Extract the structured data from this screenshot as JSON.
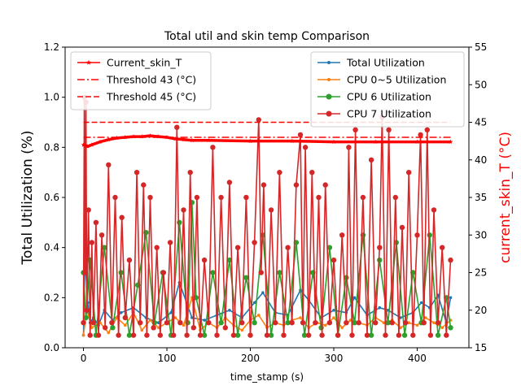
{
  "chart_data": {
    "type": "line",
    "title": "Total util and skin temp Comparison",
    "xlabel": "time_stamp (s)",
    "ylabel_left": "Total Utilization (%)",
    "ylabel_right": "current_skin_T (°C)",
    "xlim": [
      -22,
      462
    ],
    "ylim_left": [
      0,
      1.2
    ],
    "ylim_right": [
      15,
      55
    ],
    "x_ticks": [
      0,
      100,
      200,
      300,
      400
    ],
    "x_tick_labels": [
      "0",
      "100",
      "200",
      "300",
      "400"
    ],
    "y_ticks_left": [
      0,
      0.2,
      0.4,
      0.6,
      0.8,
      1.0,
      1.2
    ],
    "y_tick_labels_left": [
      "0.0",
      "0.2",
      "0.4",
      "0.6",
      "0.8",
      "1.0",
      "1.2"
    ],
    "y_ticks_right": [
      15,
      20,
      25,
      30,
      35,
      40,
      45,
      50,
      55
    ],
    "y_tick_labels_right": [
      "15",
      "20",
      "25",
      "30",
      "35",
      "40",
      "45",
      "50",
      "55"
    ],
    "grid": false,
    "legend_left": {
      "placement": "upper-left",
      "entries": [
        {
          "label": "Current_skin_T",
          "color": "#ff0000",
          "style": "solid-star"
        },
        {
          "label": "Threshold 43 (°C)",
          "color": "#ff0000",
          "style": "dashdot"
        },
        {
          "label": "Threshold 45 (°C)",
          "color": "#ff0000",
          "style": "dashed"
        }
      ]
    },
    "legend_right": {
      "placement": "upper-right",
      "entries": [
        {
          "label": "Total Utilization",
          "color": "#1f77b4",
          "style": "dot"
        },
        {
          "label": "CPU 0~5 Utilization",
          "color": "#ff7f0e",
          "style": "dot"
        },
        {
          "label": "CPU 6 Utilization",
          "color": "#2ca02c",
          "style": "circle"
        },
        {
          "label": "CPU 7 Utilization",
          "color": "#d62728",
          "style": "circle"
        }
      ]
    },
    "thresholds": [
      {
        "value": 43,
        "axis": "right",
        "color": "#ff0000",
        "style": "dashdot",
        "x_range": [
          0,
          440
        ]
      },
      {
        "value": 45,
        "axis": "right",
        "color": "#ff0000",
        "style": "dashed",
        "x_range": [
          0,
          440
        ]
      }
    ],
    "skin_temp": {
      "name": "Current_skin_T",
      "color": "#ff0000",
      "axis": "right",
      "x": [
        0,
        5,
        10,
        20,
        30,
        40,
        50,
        60,
        70,
        80,
        90,
        100,
        110,
        120,
        130,
        150,
        200,
        250,
        300,
        350,
        400,
        440
      ],
      "values": [
        42.0,
        41.8,
        42.0,
        42.4,
        42.7,
        42.9,
        43.0,
        43.1,
        43.1,
        43.2,
        43.1,
        43.0,
        42.8,
        42.7,
        42.6,
        42.6,
        42.5,
        42.5,
        42.4,
        42.4,
        42.4,
        42.4
      ]
    },
    "series": [
      {
        "name": "Total Utilization",
        "color": "#1f77b4",
        "marker": "dot",
        "x": [
          0,
          2,
          3,
          5,
          8,
          12,
          18,
          25,
          35,
          45,
          60,
          75,
          90,
          105,
          115,
          130,
          145,
          160,
          175,
          190,
          205,
          215,
          230,
          245,
          260,
          270,
          285,
          300,
          315,
          325,
          340,
          355,
          365,
          380,
          395,
          405,
          415,
          425,
          435,
          440
        ],
        "values": [
          0.05,
          0.38,
          0.3,
          0.18,
          0.1,
          0.12,
          0.09,
          0.15,
          0.11,
          0.14,
          0.16,
          0.12,
          0.1,
          0.14,
          0.26,
          0.12,
          0.11,
          0.13,
          0.15,
          0.12,
          0.18,
          0.22,
          0.14,
          0.13,
          0.23,
          0.19,
          0.12,
          0.15,
          0.14,
          0.2,
          0.13,
          0.16,
          0.15,
          0.12,
          0.14,
          0.18,
          0.16,
          0.21,
          0.1,
          0.2
        ]
      },
      {
        "name": "CPU 0~5 Utilization",
        "color": "#ff7f0e",
        "marker": "dot",
        "x": [
          0,
          4,
          10,
          20,
          30,
          40,
          50,
          60,
          70,
          80,
          90,
          100,
          110,
          120,
          130,
          140,
          150,
          160,
          170,
          180,
          190,
          200,
          210,
          220,
          230,
          240,
          250,
          260,
          270,
          280,
          290,
          300,
          310,
          320,
          330,
          340,
          350,
          360,
          370,
          380,
          390,
          400,
          410,
          420,
          430,
          440
        ],
        "values": [
          0.05,
          0.15,
          0.08,
          0.1,
          0.06,
          0.12,
          0.09,
          0.14,
          0.07,
          0.11,
          0.08,
          0.1,
          0.12,
          0.09,
          0.2,
          0.07,
          0.1,
          0.08,
          0.12,
          0.09,
          0.07,
          0.11,
          0.13,
          0.08,
          0.1,
          0.09,
          0.11,
          0.12,
          0.08,
          0.1,
          0.09,
          0.12,
          0.08,
          0.11,
          0.1,
          0.09,
          0.12,
          0.1,
          0.11,
          0.08,
          0.1,
          0.09,
          0.12,
          0.1,
          0.08,
          0.11
        ]
      },
      {
        "name": "CPU 6 Utilization",
        "color": "#2ca02c",
        "marker": "circle",
        "x": [
          0,
          3,
          8,
          15,
          25,
          35,
          45,
          55,
          65,
          75,
          85,
          95,
          105,
          115,
          125,
          130,
          135,
          145,
          155,
          165,
          175,
          185,
          195,
          205,
          215,
          225,
          235,
          245,
          255,
          265,
          275,
          285,
          295,
          305,
          315,
          325,
          335,
          345,
          355,
          365,
          375,
          385,
          395,
          405,
          415,
          425,
          435,
          440
        ],
        "values": [
          0.3,
          0.12,
          0.35,
          0.05,
          0.4,
          0.08,
          0.3,
          0.05,
          0.25,
          0.46,
          0.1,
          0.3,
          0.05,
          0.5,
          0.1,
          0.58,
          0.2,
          0.05,
          0.3,
          0.1,
          0.35,
          0.05,
          0.28,
          0.1,
          0.45,
          0.05,
          0.3,
          0.1,
          0.42,
          0.05,
          0.3,
          0.08,
          0.4,
          0.05,
          0.28,
          0.1,
          0.45,
          0.05,
          0.35,
          0.1,
          0.42,
          0.05,
          0.3,
          0.1,
          0.45,
          0.05,
          0.2,
          0.08
        ]
      },
      {
        "name": "CPU 7 Utilization",
        "color": "#d62728",
        "marker": "circle",
        "x": [
          0,
          1,
          2,
          3,
          4,
          6,
          8,
          10,
          12,
          15,
          18,
          22,
          26,
          30,
          34,
          38,
          42,
          46,
          50,
          55,
          60,
          64,
          68,
          72,
          76,
          80,
          84,
          88,
          92,
          96,
          100,
          104,
          108,
          112,
          116,
          120,
          124,
          128,
          132,
          136,
          140,
          145,
          150,
          155,
          160,
          165,
          170,
          175,
          180,
          185,
          190,
          195,
          200,
          205,
          210,
          213,
          216,
          220,
          225,
          230,
          235,
          240,
          245,
          250,
          255,
          260,
          263,
          266,
          270,
          274,
          278,
          282,
          286,
          290,
          295,
          300,
          305,
          310,
          315,
          318,
          322,
          326,
          330,
          335,
          340,
          345,
          350,
          355,
          358,
          362,
          366,
          370,
          374,
          378,
          382,
          386,
          390,
          395,
          400,
          404,
          408,
          412,
          416,
          420,
          425,
          430,
          435,
          440
        ],
        "values": [
          0.1,
          1.0,
          0.3,
          0.98,
          0.15,
          0.55,
          0.05,
          0.42,
          0.1,
          0.5,
          0.05,
          0.45,
          0.08,
          0.73,
          0.1,
          0.6,
          0.05,
          0.52,
          0.12,
          0.35,
          0.05,
          0.7,
          0.1,
          0.65,
          0.05,
          0.6,
          0.08,
          0.4,
          0.05,
          0.3,
          0.1,
          0.42,
          0.05,
          0.88,
          0.1,
          0.55,
          0.05,
          0.7,
          0.08,
          0.6,
          0.05,
          0.35,
          0.1,
          0.8,
          0.05,
          0.6,
          0.08,
          0.66,
          0.05,
          0.4,
          0.1,
          0.6,
          0.05,
          0.42,
          0.91,
          0.3,
          0.65,
          0.05,
          0.55,
          0.1,
          0.7,
          0.05,
          0.4,
          0.1,
          0.65,
          0.85,
          0.1,
          0.8,
          0.05,
          0.7,
          0.1,
          0.6,
          0.05,
          0.65,
          0.1,
          0.35,
          0.05,
          0.45,
          0.1,
          0.8,
          0.05,
          0.87,
          0.1,
          0.6,
          0.05,
          0.75,
          0.1,
          0.4,
          0.92,
          0.05,
          0.87,
          0.1,
          0.6,
          0.05,
          0.48,
          0.1,
          0.7,
          0.05,
          0.45,
          0.85,
          0.1,
          0.87,
          0.05,
          0.55,
          0.1,
          0.4,
          0.05,
          0.35
        ]
      }
    ]
  }
}
